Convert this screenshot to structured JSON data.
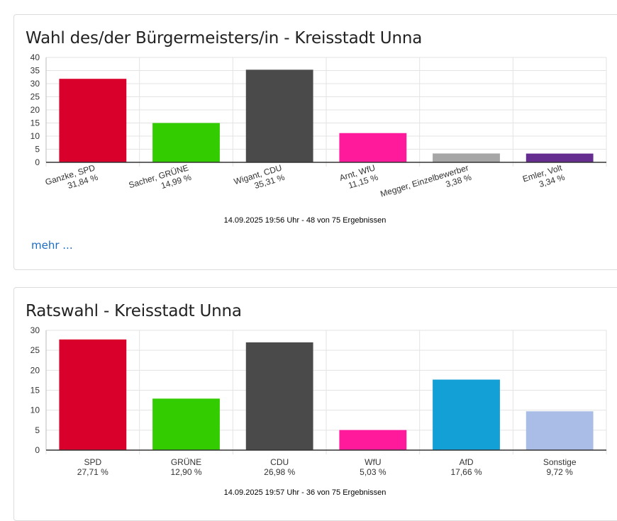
{
  "cards": [
    {
      "title": "Wahl des/der Bürgermeisters/in - Kreisstadt Unna",
      "footer": "14.09.2025 19:56 Uhr - 48 von 75 Ergebnissen",
      "more_link": "mehr ..."
    },
    {
      "title": "Ratswahl - Kreisstadt Unna",
      "footer": "14.09.2025 19:57 Uhr - 36 von 75 Ergebnissen"
    }
  ],
  "chart_data": [
    {
      "type": "bar",
      "title": "Wahl des/der Bürgermeisters/in - Kreisstadt Unna",
      "categories": [
        "Ganzke, SPD",
        "Sacher, GRÜNE",
        "Wigant, CDU",
        "Arnt, WfU",
        "Megger, Einzelbewerber",
        "Emler, Volt"
      ],
      "value_labels": [
        "31,84 %",
        "14,99 %",
        "35,31 %",
        "11,15 %",
        "3,38 %",
        "3,34 %"
      ],
      "values": [
        31.84,
        14.99,
        35.31,
        11.15,
        3.38,
        3.34
      ],
      "colors": [
        "#d9002c",
        "#33cc00",
        "#4a4a4a",
        "#ff1a9c",
        "#a6a6a6",
        "#662d91"
      ],
      "ylim": [
        0,
        40
      ],
      "yticks": [
        0,
        5,
        10,
        15,
        20,
        25,
        30,
        35,
        40
      ],
      "xlabel_rotation": "rotated",
      "grid": true
    },
    {
      "type": "bar",
      "title": "Ratswahl - Kreisstadt Unna",
      "categories": [
        "SPD",
        "GRÜNE",
        "CDU",
        "WfU",
        "AfD",
        "Sonstige"
      ],
      "value_labels": [
        "27,71 %",
        "12,90 %",
        "26,98 %",
        "5,03 %",
        "17,66 %",
        "9,72 %"
      ],
      "values": [
        27.71,
        12.9,
        26.98,
        5.03,
        17.66,
        9.72
      ],
      "colors": [
        "#d9002c",
        "#33cc00",
        "#4a4a4a",
        "#ff1a9c",
        "#12a0d7",
        "#aabde6"
      ],
      "ylim": [
        0,
        30
      ],
      "yticks": [
        0,
        5,
        10,
        15,
        20,
        25,
        30
      ],
      "xlabel_rotation": "horizontal",
      "grid": true
    }
  ]
}
